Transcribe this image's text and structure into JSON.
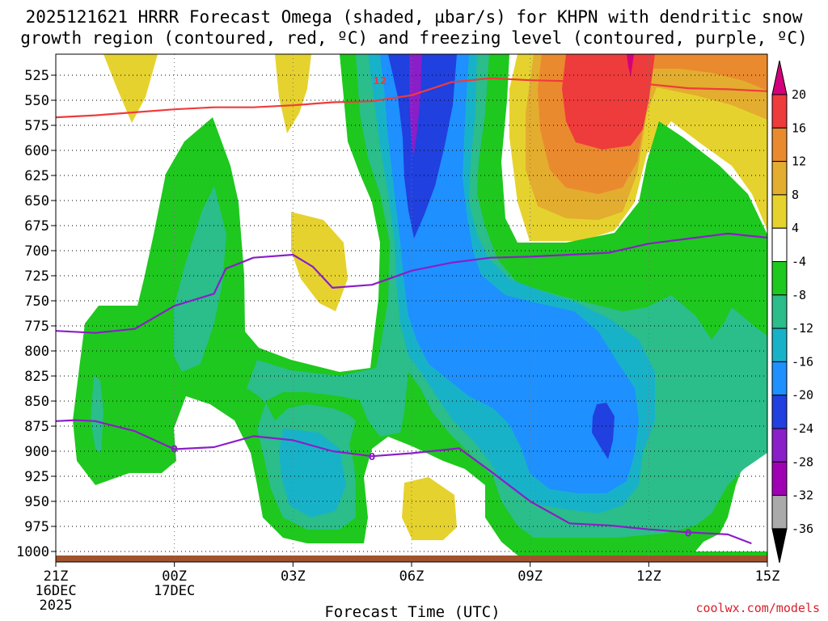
{
  "chart_data": {
    "type": "heatmap",
    "title_line1": "2025121621 HRRR Forecast Omega (shaded, µbar/s) for KHPN with dendritic snow",
    "title_line2": "growth region (contoured, red, ºC) and freezing level (contoured, purple, ºC)",
    "xlabel": "Forecast Time (UTC)",
    "credit": "coolwx.com/models",
    "x_range_hours": [
      0,
      18
    ],
    "x_ticks": [
      {
        "hour": 0,
        "label": "21Z",
        "date": "16DEC",
        "year": "2025"
      },
      {
        "hour": 3,
        "label": "00Z",
        "date": "17DEC",
        "year": ""
      },
      {
        "hour": 6,
        "label": "03Z",
        "date": "",
        "year": ""
      },
      {
        "hour": 9,
        "label": "06Z",
        "date": "",
        "year": ""
      },
      {
        "hour": 12,
        "label": "09Z",
        "date": "",
        "year": ""
      },
      {
        "hour": 15,
        "label": "12Z",
        "date": "",
        "year": ""
      },
      {
        "hour": 18,
        "label": "15Z",
        "date": "",
        "year": ""
      }
    ],
    "y_levels_hpa": [
      525,
      550,
      575,
      600,
      625,
      650,
      675,
      700,
      725,
      750,
      775,
      800,
      825,
      850,
      875,
      900,
      925,
      950,
      975,
      1000
    ],
    "colorbar": {
      "labels": [
        "20",
        "16",
        "12",
        "8",
        "4",
        "-4",
        "-8",
        "-12",
        "-16",
        "-20",
        "-24",
        "-28",
        "-32",
        "-36"
      ],
      "colors": [
        "#d2007a",
        "#ee3b3b",
        "#ea8a2e",
        "#e3ad2f",
        "#e6d22e",
        "#ffffff",
        "#1ec81e",
        "#2bbd8a",
        "#18b2c8",
        "#1e90ff",
        "#2040e0",
        "#8a1ec8",
        "#a000b4",
        "#aaaaaa",
        "#000000"
      ]
    },
    "contours": {
      "dgz_red_label": "12",
      "freezing_purple_labels": [
        "0",
        "0",
        "0"
      ],
      "dgz_red_line": [
        [
          0,
          567
        ],
        [
          1,
          565
        ],
        [
          2,
          562
        ],
        [
          3,
          559
        ],
        [
          4,
          557
        ],
        [
          5,
          557
        ],
        [
          6,
          555
        ],
        [
          7,
          552
        ],
        [
          8,
          551
        ],
        [
          9,
          545
        ],
        [
          10,
          532
        ],
        [
          11,
          528
        ],
        [
          12,
          530
        ],
        [
          13,
          531
        ],
        [
          14,
          533
        ],
        [
          15,
          534
        ],
        [
          16,
          538
        ],
        [
          17,
          539
        ],
        [
          18,
          541
        ]
      ],
      "freezing_level_upper": [
        [
          0,
          780
        ],
        [
          1,
          782
        ],
        [
          2,
          778
        ],
        [
          3,
          755
        ],
        [
          4,
          743
        ],
        [
          4.3,
          718
        ],
        [
          5,
          707
        ],
        [
          6,
          704
        ],
        [
          6.5,
          716
        ],
        [
          7,
          737
        ],
        [
          8,
          734
        ],
        [
          9,
          720
        ],
        [
          10,
          712
        ],
        [
          11,
          707
        ],
        [
          12,
          706
        ],
        [
          13,
          704
        ],
        [
          14,
          702
        ],
        [
          15,
          693
        ],
        [
          16,
          688
        ],
        [
          17,
          683
        ],
        [
          18,
          687
        ]
      ],
      "freezing_level_lower": [
        [
          0,
          870
        ],
        [
          0.5,
          869
        ],
        [
          1,
          870
        ],
        [
          2,
          880
        ],
        [
          3,
          898
        ],
        [
          4,
          896
        ],
        [
          5,
          885
        ],
        [
          6,
          889
        ],
        [
          7,
          900
        ],
        [
          8,
          905
        ],
        [
          9,
          902
        ],
        [
          10,
          898
        ],
        [
          10.2,
          897
        ],
        [
          11,
          920
        ],
        [
          12,
          950
        ],
        [
          13,
          972
        ],
        [
          14,
          974
        ],
        [
          15,
          978
        ],
        [
          16,
          981
        ],
        [
          17,
          983
        ],
        [
          17.6,
          992
        ]
      ]
    }
  }
}
